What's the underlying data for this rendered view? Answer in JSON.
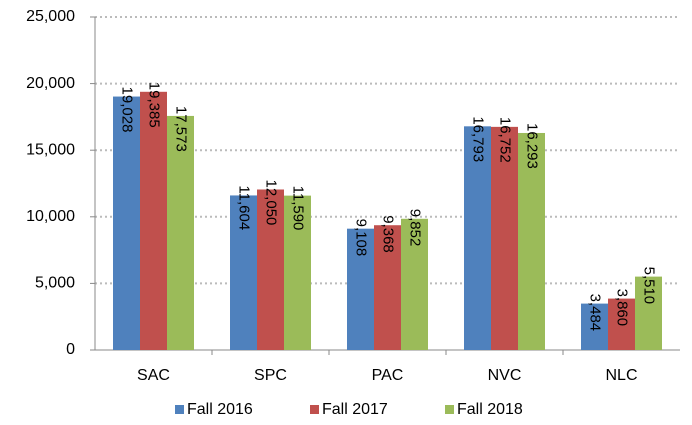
{
  "chart_data": {
    "type": "bar",
    "categories": [
      "SAC",
      "SPC",
      "PAC",
      "NVC",
      "NLC"
    ],
    "series": [
      {
        "name": "Fall 2016",
        "color": "#4f81bd",
        "values": [
          19028,
          11604,
          9108,
          16793,
          3484
        ],
        "value_labels": [
          "19,028",
          "11,604",
          "9,108",
          "16,793",
          "3,484"
        ]
      },
      {
        "name": "Fall 2017",
        "color": "#c0504d",
        "values": [
          19385,
          12050,
          9368,
          16752,
          3860
        ],
        "value_labels": [
          "19,385",
          "12,050",
          "9,368",
          "16,752",
          "3,860"
        ]
      },
      {
        "name": "Fall 2018",
        "color": "#9bbb59",
        "values": [
          17573,
          11590,
          9852,
          16293,
          5510
        ],
        "value_labels": [
          "17,573",
          "11,590",
          "9,852",
          "16,293",
          "5,510"
        ]
      }
    ],
    "ylim": [
      0,
      25000
    ],
    "yticks": [
      0,
      {
        "value": 5000,
        "label": "5,000"
      },
      {
        "value": 10000,
        "label": "10,000"
      },
      {
        "value": 15000,
        "label": "15,000"
      },
      {
        "value": 20000,
        "label": "20,000"
      },
      {
        "value": 25000,
        "label": "25,000"
      }
    ],
    "grid": true,
    "legend": "bottom"
  }
}
